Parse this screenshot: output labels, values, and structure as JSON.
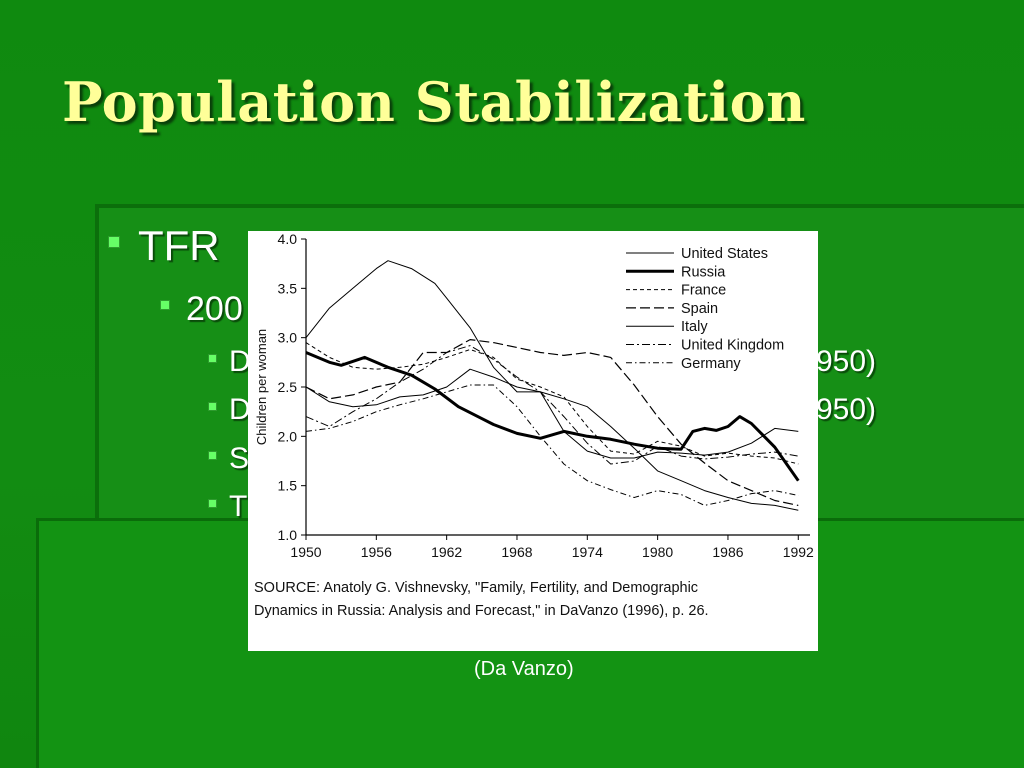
{
  "slide": {
    "title": "Population Stabilization",
    "bullets": [
      {
        "text": "TFR"
      },
      {
        "text": "200"
      },
      {
        "text": "D"
      },
      {
        "text": "D"
      },
      {
        "text": "S"
      },
      {
        "text": "T"
      }
    ],
    "hidden_fragments": [
      "950)",
      "950)"
    ],
    "caption": "(Da Vanzo)"
  },
  "figure": {
    "source_line1": "SOURCE:  Anatoly G. Vishnevsky, \"Family, Fertility, and Demographic",
    "source_line2": "Dynamics in Russia:  Analysis and Forecast,\" in DaVanzo (1996), p. 26."
  },
  "colors": {
    "background": "#108a10",
    "title": "#ffff99",
    "bullet_marker": "#66ff66",
    "text": "#ffffff",
    "line": "#000000"
  },
  "chart_data": {
    "type": "line",
    "ylabel": "Children per woman",
    "xlabel": "",
    "xlim": [
      1950,
      1993
    ],
    "ylim": [
      1.0,
      4.0
    ],
    "x_ticks": [
      1950,
      1956,
      1962,
      1968,
      1974,
      1980,
      1986,
      1992
    ],
    "y_ticks": [
      "1.0",
      "1.5",
      "2.0",
      "2.5",
      "3.0",
      "3.5",
      "4.0"
    ],
    "legend_position": "top-right",
    "series": [
      {
        "name": "United States",
        "style": "thin-solid",
        "x": [
          1950,
          1952,
          1954,
          1956,
          1957,
          1959,
          1961,
          1962,
          1964,
          1966,
          1968,
          1970,
          1972,
          1974,
          1976,
          1978,
          1980,
          1982,
          1984,
          1986,
          1988,
          1990,
          1992
        ],
        "y": [
          3.0,
          3.3,
          3.5,
          3.7,
          3.78,
          3.7,
          3.55,
          3.4,
          3.1,
          2.7,
          2.45,
          2.45,
          2.05,
          1.85,
          1.78,
          1.78,
          1.84,
          1.83,
          1.81,
          1.84,
          1.93,
          2.08,
          2.05
        ]
      },
      {
        "name": "Russia",
        "style": "thick-solid",
        "x": [
          1950,
          1952,
          1953,
          1955,
          1957,
          1959,
          1961,
          1963,
          1965,
          1966,
          1968,
          1970,
          1972,
          1974,
          1976,
          1978,
          1980,
          1982,
          1983,
          1984,
          1985,
          1986,
          1987,
          1988,
          1989,
          1990,
          1991,
          1992
        ],
        "y": [
          2.85,
          2.75,
          2.72,
          2.8,
          2.7,
          2.62,
          2.48,
          2.3,
          2.18,
          2.12,
          2.03,
          1.98,
          2.05,
          2.0,
          1.97,
          1.92,
          1.88,
          1.87,
          2.05,
          2.08,
          2.06,
          2.1,
          2.2,
          2.13,
          2.01,
          1.89,
          1.72,
          1.55
        ]
      },
      {
        "name": "France",
        "style": "dashed",
        "x": [
          1950,
          1952,
          1954,
          1956,
          1958,
          1960,
          1962,
          1964,
          1966,
          1968,
          1970,
          1972,
          1974,
          1976,
          1978,
          1980,
          1982,
          1984,
          1986,
          1988,
          1990,
          1992
        ],
        "y": [
          2.95,
          2.8,
          2.7,
          2.68,
          2.7,
          2.73,
          2.8,
          2.88,
          2.8,
          2.58,
          2.5,
          2.4,
          2.1,
          1.85,
          1.82,
          1.95,
          1.9,
          1.8,
          1.83,
          1.8,
          1.78,
          1.72
        ]
      },
      {
        "name": "Spain",
        "style": "long-dash",
        "x": [
          1950,
          1952,
          1954,
          1956,
          1958,
          1960,
          1962,
          1964,
          1966,
          1968,
          1970,
          1972,
          1974,
          1976,
          1978,
          1980,
          1982,
          1984,
          1986,
          1988,
          1990,
          1992
        ],
        "y": [
          2.5,
          2.38,
          2.42,
          2.5,
          2.55,
          2.85,
          2.85,
          2.98,
          2.95,
          2.9,
          2.85,
          2.82,
          2.85,
          2.8,
          2.52,
          2.2,
          1.92,
          1.73,
          1.55,
          1.45,
          1.35,
          1.3
        ]
      },
      {
        "name": "Italy",
        "style": "thin-solid",
        "x": [
          1950,
          1952,
          1954,
          1956,
          1958,
          1960,
          1962,
          1964,
          1966,
          1968,
          1970,
          1972,
          1974,
          1976,
          1978,
          1980,
          1982,
          1984,
          1986,
          1988,
          1990,
          1992
        ],
        "y": [
          2.5,
          2.35,
          2.3,
          2.32,
          2.4,
          2.42,
          2.5,
          2.68,
          2.6,
          2.5,
          2.45,
          2.38,
          2.3,
          2.1,
          1.88,
          1.65,
          1.55,
          1.45,
          1.38,
          1.32,
          1.3,
          1.25
        ]
      },
      {
        "name": "United Kingdom",
        "style": "long-dash-dotted",
        "x": [
          1950,
          1952,
          1954,
          1956,
          1958,
          1960,
          1962,
          1964,
          1966,
          1968,
          1970,
          1972,
          1974,
          1976,
          1978,
          1980,
          1982,
          1984,
          1986,
          1988,
          1990,
          1992
        ],
        "y": [
          2.2,
          2.1,
          2.25,
          2.38,
          2.55,
          2.68,
          2.85,
          2.92,
          2.78,
          2.6,
          2.45,
          2.2,
          1.93,
          1.72,
          1.75,
          1.9,
          1.8,
          1.77,
          1.79,
          1.82,
          1.84,
          1.8
        ]
      },
      {
        "name": "Germany",
        "style": "dash-dot",
        "x": [
          1950,
          1952,
          1954,
          1956,
          1958,
          1960,
          1962,
          1964,
          1966,
          1968,
          1970,
          1972,
          1974,
          1976,
          1978,
          1980,
          1982,
          1984,
          1986,
          1988,
          1990,
          1992
        ],
        "y": [
          2.05,
          2.08,
          2.15,
          2.25,
          2.32,
          2.38,
          2.45,
          2.52,
          2.52,
          2.3,
          2.0,
          1.72,
          1.55,
          1.46,
          1.38,
          1.45,
          1.41,
          1.3,
          1.35,
          1.42,
          1.45,
          1.4
        ]
      }
    ]
  }
}
